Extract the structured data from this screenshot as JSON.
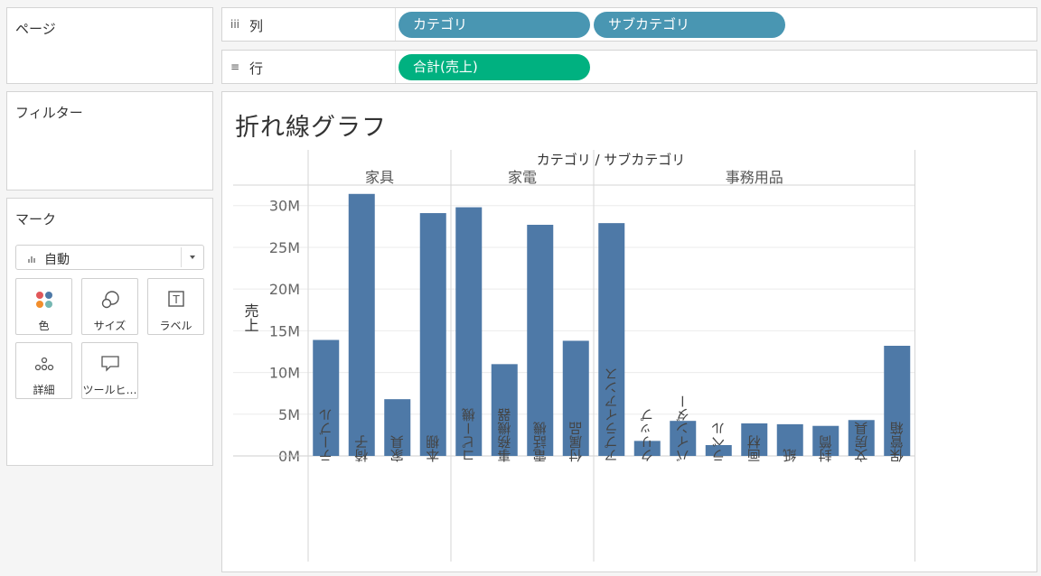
{
  "sidebar": {
    "pages": {
      "title": "ページ"
    },
    "filters": {
      "title": "フィルター"
    },
    "marks": {
      "title": "マーク",
      "type_value": "自動",
      "buttons": [
        {
          "label": "色",
          "icon": "color-icon"
        },
        {
          "label": "サイズ",
          "icon": "size-icon"
        },
        {
          "label": "ラベル",
          "icon": "label-icon"
        },
        {
          "label": "詳細",
          "icon": "detail-icon"
        },
        {
          "label": "ツールヒ…",
          "icon": "tooltip-icon"
        }
      ]
    }
  },
  "shelves": {
    "columns": {
      "icon": "iii",
      "label": "列",
      "pills": [
        "カテゴリ",
        "サブカテゴリ"
      ]
    },
    "rows": {
      "icon": "≡",
      "label": "行",
      "pills": [
        "合計(売上)"
      ]
    }
  },
  "colors": {
    "bar": "#4e79a7",
    "pill_dimension": "#4996b2",
    "pill_measure": "#00b180"
  },
  "chart": {
    "title": "折れ線グラフ"
  },
  "chart_data": {
    "type": "bar",
    "title": "折れ線グラフ",
    "header_label": "カテゴリ / サブカテゴリ",
    "ylabel": "売上",
    "ylim": [
      0,
      33000000
    ],
    "yticks": [
      {
        "value": 0,
        "label": "0M"
      },
      {
        "value": 5000000,
        "label": "5M"
      },
      {
        "value": 10000000,
        "label": "10M"
      },
      {
        "value": 15000000,
        "label": "15M"
      },
      {
        "value": 20000000,
        "label": "20M"
      },
      {
        "value": 25000000,
        "label": "25M"
      },
      {
        "value": 30000000,
        "label": "30M"
      }
    ],
    "grid": true,
    "groups": [
      {
        "name": "家具",
        "bars": [
          {
            "category": "テーブル",
            "value": 13900000
          },
          {
            "category": "椅子",
            "value": 31400000
          },
          {
            "category": "家具",
            "value": 6800000
          },
          {
            "category": "本棚",
            "value": 29100000
          }
        ]
      },
      {
        "name": "家電",
        "bars": [
          {
            "category": "コピー機",
            "value": 29800000
          },
          {
            "category": "事務機器",
            "value": 11000000
          },
          {
            "category": "電話機",
            "value": 27700000
          },
          {
            "category": "付属品",
            "value": 13800000
          }
        ]
      },
      {
        "name": "事務用品",
        "bars": [
          {
            "category": "アプライアンス",
            "value": 27900000
          },
          {
            "category": "クリップ",
            "value": 1800000
          },
          {
            "category": "バインダー",
            "value": 4200000
          },
          {
            "category": "ラベル",
            "value": 1300000
          },
          {
            "category": "画材",
            "value": 3900000
          },
          {
            "category": "紙",
            "value": 3800000
          },
          {
            "category": "封筒",
            "value": 3600000
          },
          {
            "category": "文房具",
            "value": 4300000
          },
          {
            "category": "保管箱",
            "value": 13200000
          }
        ]
      }
    ]
  }
}
